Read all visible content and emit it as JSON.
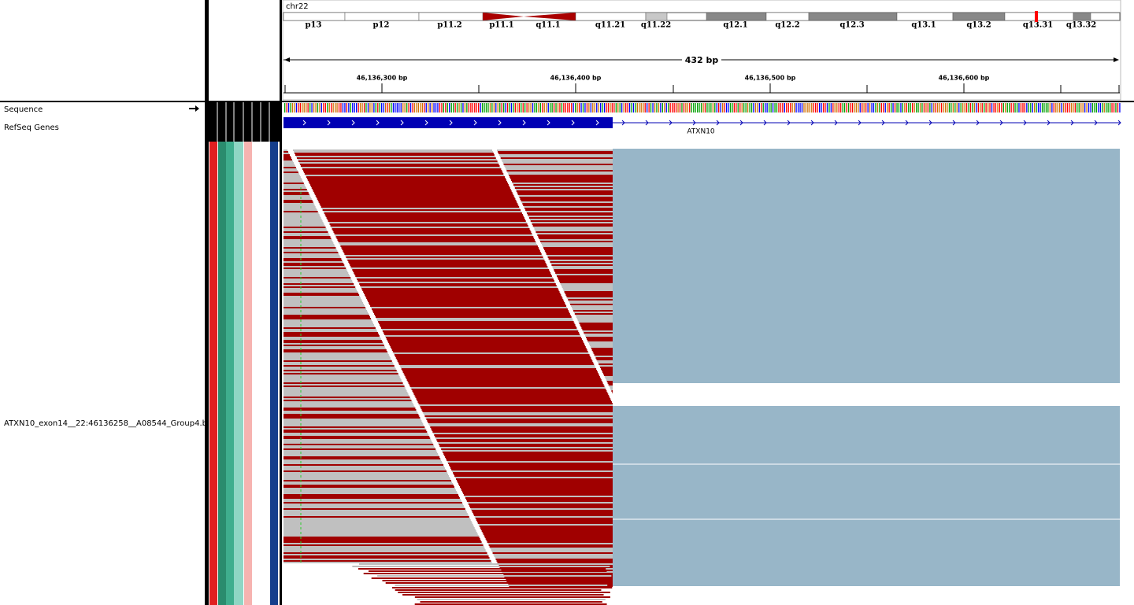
{
  "header": {
    "chromosome": "chr22"
  },
  "ideogram": {
    "bands": [
      "p13",
      "p12",
      "p11.2",
      "p11.1",
      "q11.1",
      "q11.21",
      "q11.22",
      "q12.1",
      "q12.2",
      "q12.3",
      "q13.1",
      "q13.2",
      "q13.31",
      "q13.32"
    ]
  },
  "ruler": {
    "span": "432 bp",
    "ticks": [
      "46,136,300 bp",
      "46,136,400 bp",
      "46,136,500 bp",
      "46,136,600 bp"
    ]
  },
  "tracks": {
    "sequence": "Sequence",
    "genes": "RefSeq Genes",
    "gene_label": "ATXN10",
    "alignment": "ATXN10_exon14__22:46136258__A08544_Group4.b"
  }
}
